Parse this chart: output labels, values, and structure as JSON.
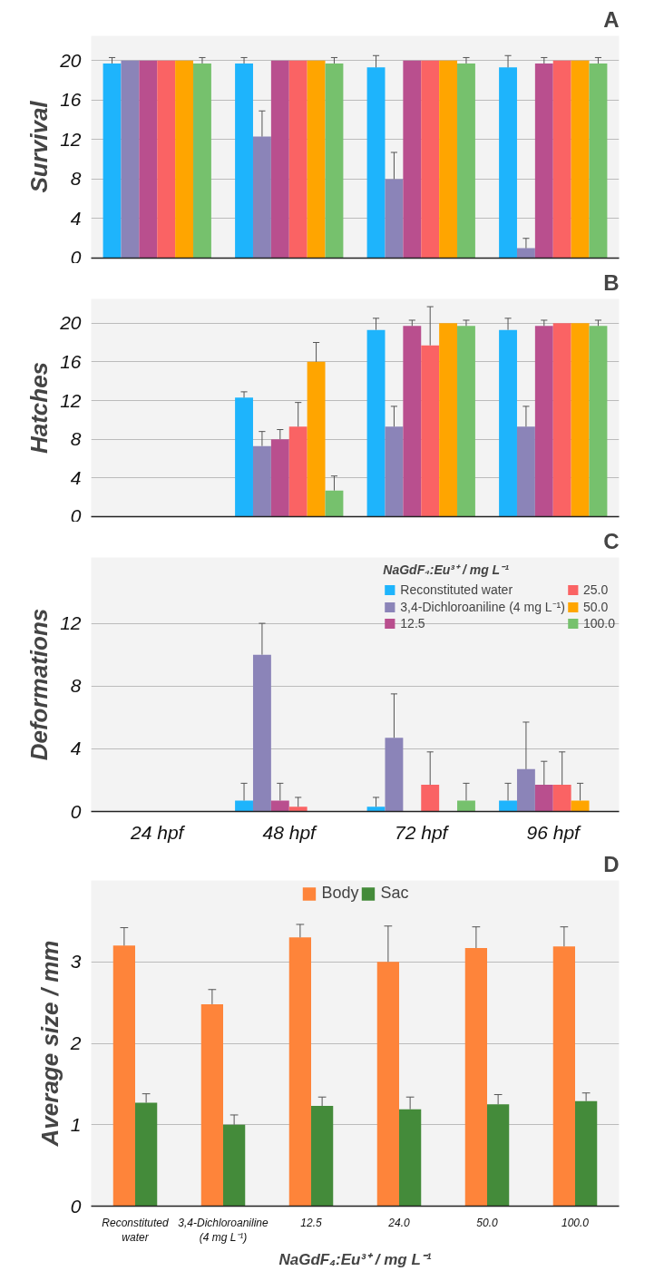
{
  "chart_data": [
    {
      "type": "bar",
      "title": "A",
      "ylabel": "Survival",
      "categories": [
        "24 hpf",
        "48 hpf",
        "72 hpf",
        "96 hpf"
      ],
      "ylim": [
        0,
        22.5
      ],
      "yticks": [
        0,
        4,
        8,
        12,
        16,
        20
      ],
      "grid": "y",
      "tick_labels": "y",
      "series": [
        {
          "color": "#1eb4fc",
          "values": [
            19.7,
            19.7,
            19.3,
            19.3
          ],
          "errors": [
            [
              19.7,
              20.3
            ],
            [
              19.7,
              20.3
            ],
            [
              19.3,
              20.5
            ],
            [
              19.3,
              20.5
            ]
          ]
        },
        {
          "color": "#8b84b8",
          "values": [
            20,
            12.3,
            8,
            1
          ],
          "errors": [
            null,
            [
              12.3,
              14.9
            ],
            [
              8,
              10.7
            ],
            [
              1,
              2
            ]
          ]
        },
        {
          "color": "#b94f8e",
          "values": [
            20,
            20,
            20,
            19.7
          ],
          "errors": [
            null,
            null,
            null,
            [
              19.7,
              20.3
            ]
          ]
        },
        {
          "color": "#fa6364",
          "values": [
            20,
            20,
            20,
            20
          ],
          "errors": [
            null,
            null,
            null,
            null
          ]
        },
        {
          "color": "#ffa500",
          "values": [
            20,
            20,
            20,
            20
          ],
          "errors": [
            null,
            null,
            null,
            null
          ]
        },
        {
          "color": "#76c16d",
          "values": [
            19.7,
            19.7,
            19.7,
            19.7
          ],
          "errors": [
            [
              19.7,
              20.3
            ],
            [
              19.7,
              20.3
            ],
            [
              19.7,
              20.3
            ],
            [
              19.7,
              20.3
            ]
          ]
        }
      ]
    },
    {
      "type": "bar",
      "title": "B",
      "ylabel": "Hatches",
      "categories": [
        "24 hpf",
        "48 hpf",
        "72 hpf",
        "96 hpf"
      ],
      "ylim": [
        0,
        22.5
      ],
      "yticks": [
        0,
        4,
        8,
        12,
        16,
        20
      ],
      "grid": "y",
      "tick_labels": "y",
      "series": [
        {
          "color": "#1eb4fc",
          "values": [
            0,
            12.3,
            19.3,
            19.3
          ],
          "errors": [
            null,
            [
              12.3,
              12.9
            ],
            [
              19.3,
              20.5
            ],
            [
              19.3,
              20.5
            ]
          ]
        },
        {
          "color": "#8b84b8",
          "values": [
            0,
            7.3,
            9.3,
            9.3
          ],
          "errors": [
            null,
            [
              7.3,
              8.8
            ],
            [
              9.3,
              11.4
            ],
            [
              9.3,
              11.4
            ]
          ]
        },
        {
          "color": "#b94f8e",
          "values": [
            0,
            8,
            19.7,
            19.7
          ],
          "errors": [
            null,
            [
              8,
              9
            ],
            [
              19.7,
              20.3
            ],
            [
              19.7,
              20.3
            ]
          ]
        },
        {
          "color": "#fa6364",
          "values": [
            0,
            9.3,
            17.7,
            20
          ],
          "errors": [
            null,
            [
              9.3,
              11.8
            ],
            [
              17.7,
              21.7
            ],
            null
          ]
        },
        {
          "color": "#ffa500",
          "values": [
            0,
            16,
            20,
            20
          ],
          "errors": [
            null,
            [
              16,
              18
            ],
            null,
            null
          ]
        },
        {
          "color": "#76c16d",
          "values": [
            0,
            2.7,
            19.7,
            19.7
          ],
          "errors": [
            null,
            [
              2.7,
              4.2
            ],
            [
              19.7,
              20.3
            ],
            [
              19.7,
              20.3
            ]
          ]
        }
      ]
    },
    {
      "type": "bar",
      "title": "C",
      "ylabel": "Deformations",
      "categories": [
        "24 hpf",
        "48 hpf",
        "72 hpf",
        "96 hpf"
      ],
      "ylim": [
        0,
        16.2
      ],
      "yticks": [
        0,
        4,
        8,
        12
      ],
      "grid": "y",
      "legend": "top right",
      "legend_title": "NaGdF₄:Eu³⁺ / mg L⁻¹",
      "series": [
        {
          "name": "Reconstituted water",
          "color": "#1eb4fc",
          "values": [
            0,
            0.7,
            0.3,
            0.7
          ],
          "errors": [
            null,
            [
              0.7,
              1.8
            ],
            [
              0.3,
              0.9
            ],
            [
              0.7,
              1.8
            ]
          ]
        },
        {
          "name": "3,4-Dichloroaniline (4 mg L⁻¹)",
          "color": "#8b84b8",
          "values": [
            0,
            10,
            4.7,
            2.7
          ],
          "errors": [
            null,
            [
              10,
              12
            ],
            [
              4.7,
              7.5
            ],
            [
              2.7,
              5.7
            ]
          ]
        },
        {
          "name": "12.5",
          "color": "#b94f8e",
          "values": [
            0,
            0.7,
            0,
            1.7
          ],
          "errors": [
            null,
            [
              0.7,
              1.8
            ],
            null,
            [
              1.7,
              3.2
            ]
          ]
        },
        {
          "name": "25.0",
          "color": "#fa6364",
          "values": [
            0,
            0.3,
            1.7,
            1.7
          ],
          "errors": [
            null,
            [
              0.3,
              0.9
            ],
            [
              1.7,
              3.8
            ],
            [
              1.7,
              3.8
            ]
          ]
        },
        {
          "name": "50.0",
          "color": "#ffa500",
          "values": [
            0,
            0,
            0,
            0.7
          ],
          "errors": [
            null,
            null,
            null,
            [
              0.7,
              1.8
            ]
          ]
        },
        {
          "name": "100.0",
          "color": "#76c16d",
          "values": [
            0,
            0,
            0.7,
            0
          ],
          "errors": [
            null,
            null,
            [
              0.7,
              1.8
            ],
            null
          ]
        }
      ]
    },
    {
      "type": "bar",
      "title": "D",
      "ylabel": "Average size / mm",
      "xlabel": "NaGdF₄:Eu³⁺ / mg L⁻¹",
      "categories": [
        "Reconstituted water",
        "3,4-Dichloroaniline (4 mg L⁻¹)",
        "12.5",
        "24.0",
        "50.0",
        "100.0"
      ],
      "ylim": [
        0,
        4
      ],
      "yticks": [
        0,
        1,
        2,
        3
      ],
      "grid": "y",
      "legend": "top",
      "series": [
        {
          "name": "Body",
          "color": "#fe843a",
          "values": [
            3.2,
            2.48,
            3.3,
            3.0,
            3.17,
            3.19
          ],
          "errors": [
            [
              3.2,
              3.42
            ],
            [
              2.48,
              2.66
            ],
            [
              3.3,
              3.46
            ],
            [
              3.0,
              3.44
            ],
            [
              3.17,
              3.43
            ],
            [
              3.19,
              3.43
            ]
          ]
        },
        {
          "name": "Sac",
          "color": "#448b3a",
          "values": [
            1.27,
            1.0,
            1.23,
            1.19,
            1.25,
            1.29
          ],
          "errors": [
            [
              1.27,
              1.38
            ],
            [
              1.0,
              1.12
            ],
            [
              1.23,
              1.34
            ],
            [
              1.19,
              1.34
            ],
            [
              1.25,
              1.37
            ],
            [
              1.29,
              1.39
            ]
          ]
        }
      ]
    }
  ]
}
